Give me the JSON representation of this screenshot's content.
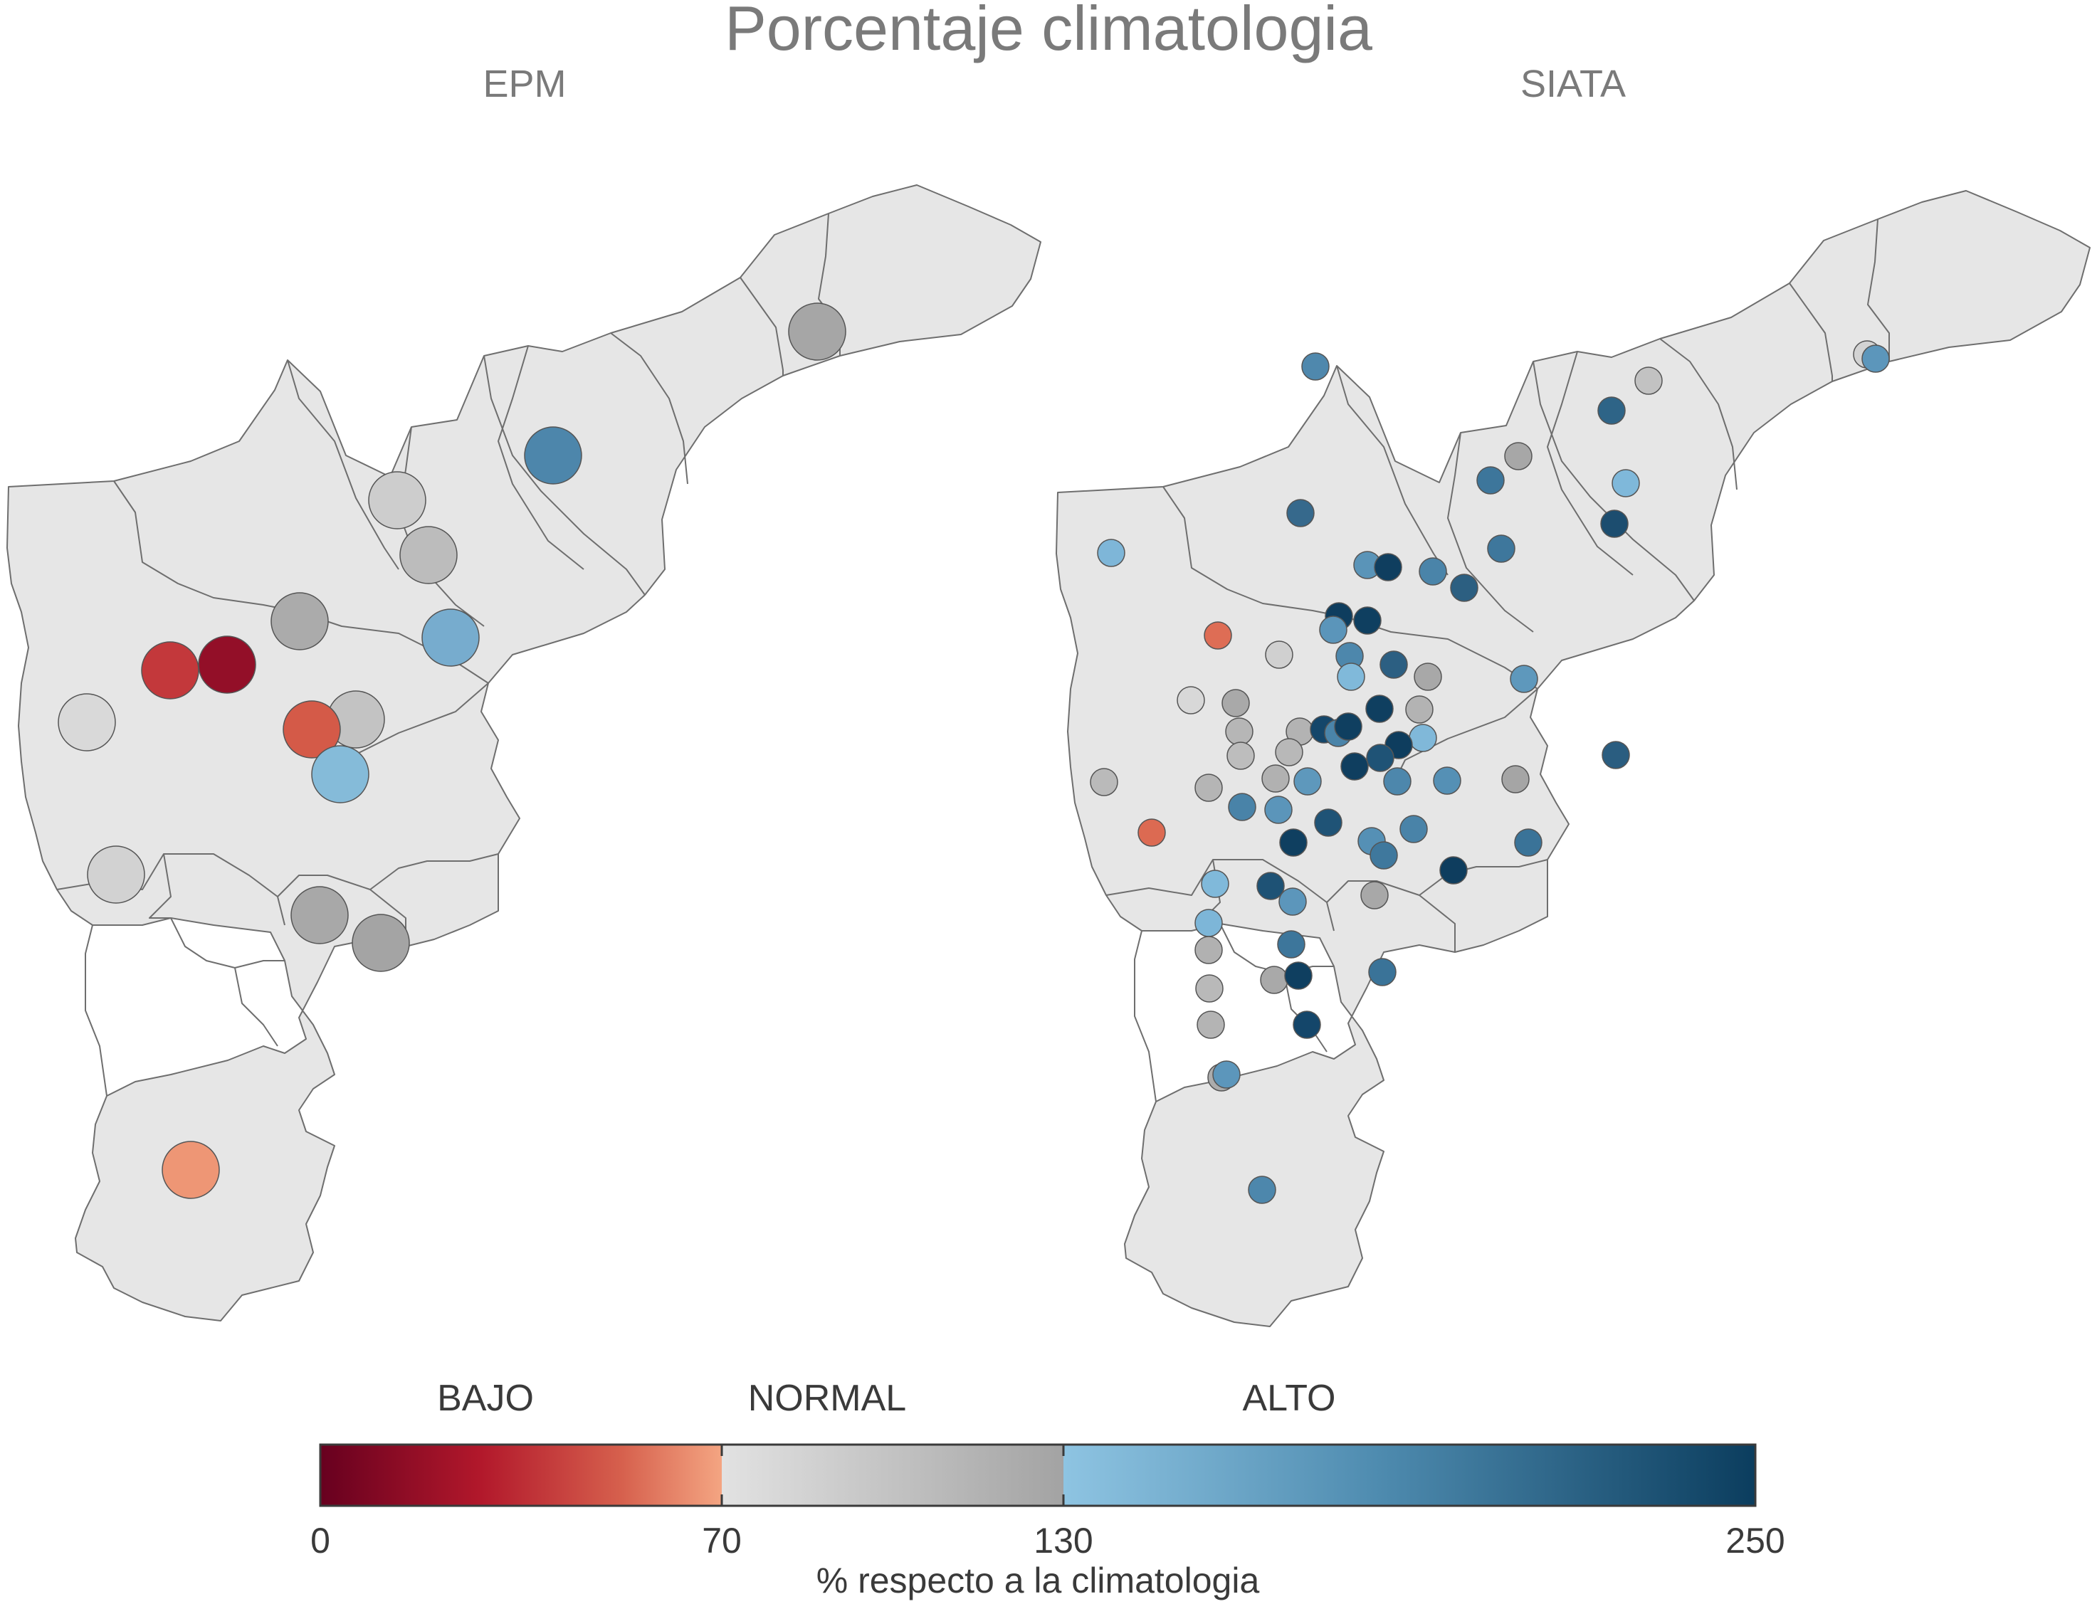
{
  "title": "Porcentaje climatologia",
  "panels": [
    {
      "title": "EPM"
    },
    {
      "title": "SIATA"
    }
  ],
  "legend": {
    "categories": [
      "BAJO",
      "NORMAL",
      "ALTO"
    ],
    "ticks": [
      "0",
      "70",
      "130",
      "250"
    ],
    "tick_values": [
      0,
      70,
      130,
      250
    ],
    "caption": "% respecto a la climatologia",
    "range": [
      0,
      250
    ],
    "gradient": {
      "bajo": [
        "#67001f",
        "#b2182b",
        "#d6604d",
        "#f4a582"
      ],
      "normal": [
        "#e0e0e0",
        "#a6a6a6"
      ],
      "alto": [
        "#92c5de",
        "#4393c3",
        "#2166ac",
        "#053061"
      ]
    }
  }
}
